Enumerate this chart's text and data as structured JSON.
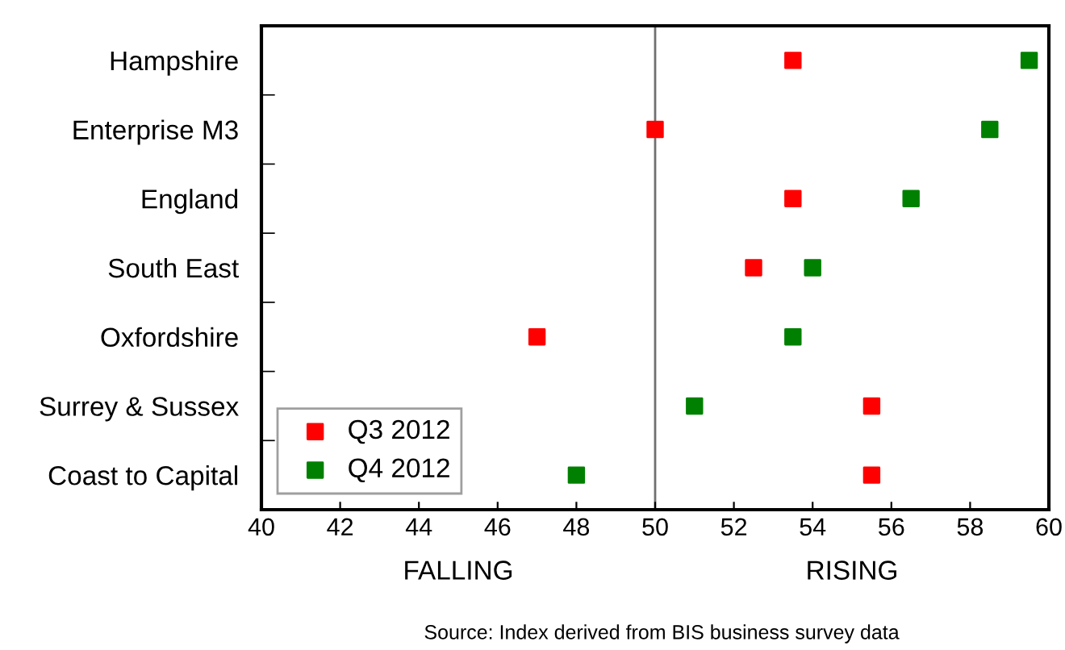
{
  "chart_data": {
    "type": "scatter",
    "orientation": "horizontal",
    "categories": [
      "Hampshire",
      "Enterprise M3",
      "England",
      "South East",
      "Oxfordshire",
      "Surrey & Sussex",
      "Coast to Capital"
    ],
    "series": [
      {
        "name": "Q3 2012",
        "color": "#ff0000",
        "values": [
          53.5,
          50,
          53.5,
          52.5,
          47,
          55.5,
          55.5
        ]
      },
      {
        "name": "Q4 2012",
        "color": "#008000",
        "values": [
          59.5,
          58.5,
          56.5,
          54,
          53.5,
          51,
          48
        ]
      }
    ],
    "xlim": [
      40,
      60
    ],
    "xticks": [
      40,
      42,
      44,
      46,
      48,
      50,
      52,
      54,
      56,
      58,
      60
    ],
    "ref_lines": [
      {
        "axis": "x",
        "value": 50,
        "color": "#707070"
      }
    ],
    "annotations": [
      "FALLING",
      "RISING",
      "Source: Index derived from BIS business survey data"
    ],
    "marker": "square",
    "legend": "bottom left",
    "grid": false
  }
}
